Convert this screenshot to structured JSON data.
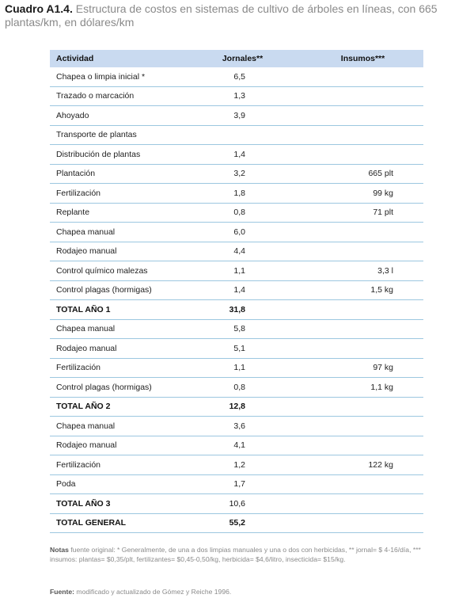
{
  "caption": {
    "label": "Cuadro A1.4.",
    "text": "Estructura de costos en sistemas de cultivo de árboles en líneas, con 665 plantas/km, en dólares/km"
  },
  "table": {
    "headers": [
      "Actividad",
      "Jornales**",
      "Insumos***"
    ],
    "rows": [
      {
        "actividad": "Chapea o limpia inicial *",
        "jornales": "6,5",
        "insumos": "",
        "total": false
      },
      {
        "actividad": "Trazado o marcación",
        "jornales": "1,3",
        "insumos": "",
        "total": false
      },
      {
        "actividad": "Ahoyado",
        "jornales": "3,9",
        "insumos": "",
        "total": false
      },
      {
        "actividad": "Transporte de plantas",
        "jornales": "",
        "insumos": "",
        "total": false
      },
      {
        "actividad": "Distribución de plantas",
        "jornales": "1,4",
        "insumos": "",
        "total": false
      },
      {
        "actividad": "Plantación",
        "jornales": "3,2",
        "insumos": "665 plt",
        "total": false
      },
      {
        "actividad": "Fertilización",
        "jornales": "1,8",
        "insumos": "99 kg",
        "total": false
      },
      {
        "actividad": "Replante",
        "jornales": "0,8",
        "insumos": "71 plt",
        "total": false
      },
      {
        "actividad": "Chapea manual",
        "jornales": "6,0",
        "insumos": "",
        "total": false
      },
      {
        "actividad": "Rodajeo manual",
        "jornales": "4,4",
        "insumos": "",
        "total": false
      },
      {
        "actividad": "Control químico malezas",
        "jornales": "1,1",
        "insumos": "3,3 l",
        "total": false
      },
      {
        "actividad": "Control plagas (hormigas)",
        "jornales": "1,4",
        "insumos": "1,5 kg",
        "total": false
      },
      {
        "actividad": "TOTAL AÑO 1",
        "jornales": "31,8",
        "insumos": "",
        "total": true
      },
      {
        "actividad": "Chapea manual",
        "jornales": "5,8",
        "insumos": "",
        "total": false
      },
      {
        "actividad": "Rodajeo manual",
        "jornales": "5,1",
        "insumos": "",
        "total": false
      },
      {
        "actividad": "Fertilización",
        "jornales": "1,1",
        "insumos": "97 kg",
        "total": false
      },
      {
        "actividad": "Control plagas (hormigas)",
        "jornales": "0,8",
        "insumos": "1,1 kg",
        "total": false
      },
      {
        "actividad": "TOTAL AÑO 2",
        "jornales": "12,8",
        "insumos": "",
        "total": true
      },
      {
        "actividad": "Chapea manual",
        "jornales": "3,6",
        "insumos": "",
        "total": false
      },
      {
        "actividad": "Rodajeo manual",
        "jornales": "4,1",
        "insumos": "",
        "total": false
      },
      {
        "actividad": "Fertilización",
        "jornales": "1,2",
        "insumos": "122 kg",
        "total": false
      },
      {
        "actividad": "Poda",
        "jornales": "1,7",
        "insumos": "",
        "total": false
      },
      {
        "actividad": "TOTAL AÑO 3",
        "jornales": "10,6",
        "insumos": "",
        "total": true,
        "plain_value": true
      },
      {
        "actividad": "TOTAL GENERAL",
        "jornales": "55,2",
        "insumos": "",
        "total": true
      }
    ]
  },
  "notes": {
    "label": "Notas",
    "text": "fuente original: * Generalmente, de una a dos limpias manuales y una o dos con herbicidas, ** jornal= $ 4-16/día, *** insumos: plantas= $0,35/plt, fertilizantes= $0,45-0,50/kg, herbicida= $4,6/litro, insecticida= $15/kg."
  },
  "source": {
    "label": "Fuente:",
    "text": "modificado y actualizado de Gómez y Reiche 1996."
  }
}
